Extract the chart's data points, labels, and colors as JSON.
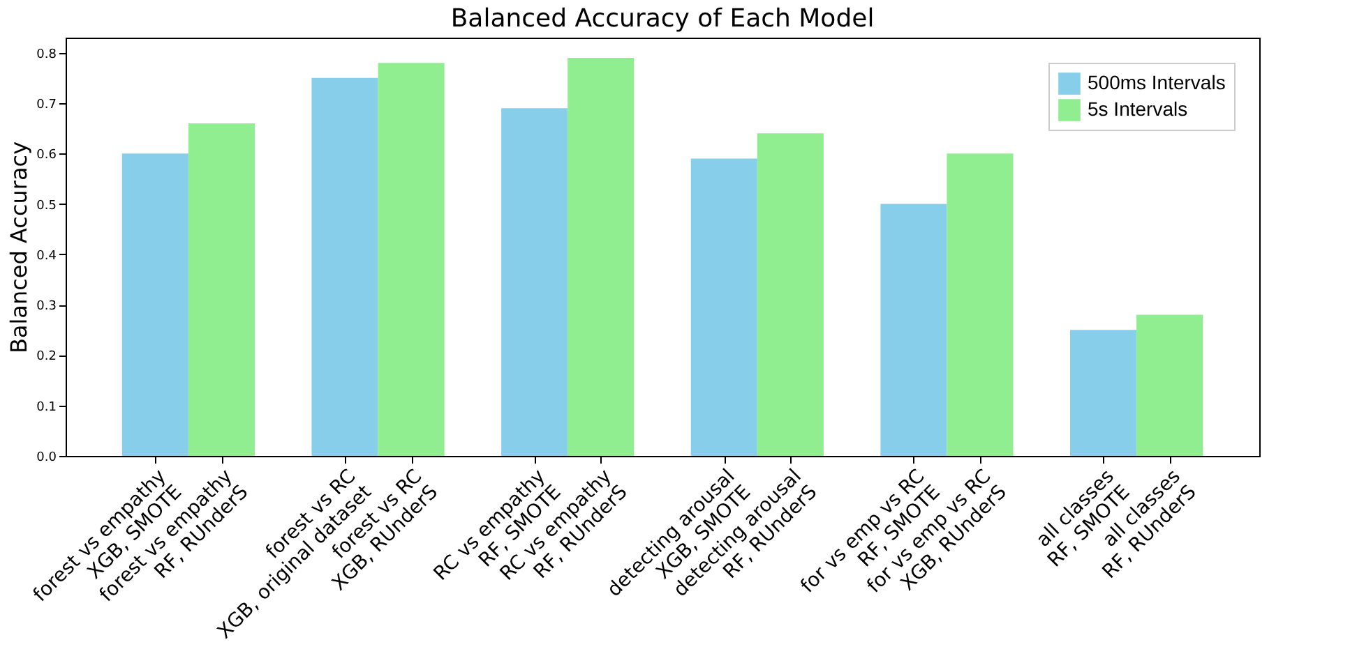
{
  "chart_data": {
    "type": "bar",
    "title": "Balanced Accuracy of Each Model",
    "ylabel": "Balanced Accuracy",
    "categories": [
      "forest vs empathy\nXGB, SMOTE",
      "forest vs empathy\nRF, RUnderS",
      "forest vs RC\nXGB, original dataset",
      "forest vs RC\nXGB, RUnderS",
      "RC vs empathy\nRF, SMOTE",
      "RC vs empathy\nRF, RUnderS",
      "detecting arousal\nXGB, SMOTE",
      "detecting arousal\nRF, RUnderS",
      "for vs emp vs RC\nRF, SMOTE",
      "for vs emp vs RC\nXGB, RUnderS",
      "all classes\nRF, SMOTE",
      "all classes\nRF, RUnderS"
    ],
    "series": [
      {
        "name": "500ms Intervals",
        "color": "#87ceeb",
        "values": [
          0.6,
          null,
          0.75,
          null,
          0.69,
          null,
          0.59,
          null,
          0.5,
          null,
          0.25,
          null
        ]
      },
      {
        "name": "5s Intervals",
        "color": "#90ee90",
        "values": [
          null,
          0.66,
          null,
          0.78,
          null,
          0.79,
          null,
          0.64,
          null,
          0.6,
          null,
          0.28
        ]
      }
    ],
    "ylim": [
      0,
      0.83
    ],
    "yticks": [
      {
        "value": 0,
        "label": "0.0"
      },
      0.1,
      0.2,
      0.3,
      0.4,
      0.5,
      0.6,
      0.7,
      0.8
    ],
    "grid": false,
    "legend": "top right"
  }
}
